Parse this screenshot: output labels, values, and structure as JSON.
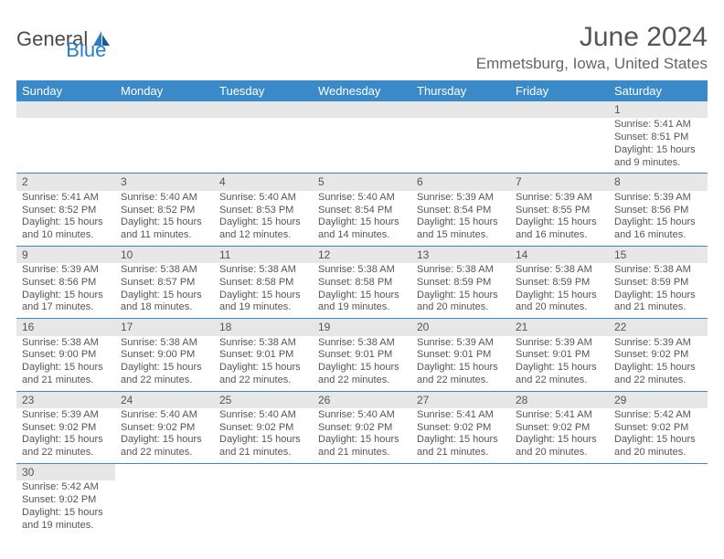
{
  "logo": {
    "text1": "General",
    "text2": "Blue"
  },
  "title": "June 2024",
  "location": "Emmetsburg, Iowa, United States",
  "header_bg": "#3a8ac9",
  "daynum_bg": "#e7e7e7",
  "divider_color": "#3a8ac9",
  "columns": [
    "Sunday",
    "Monday",
    "Tuesday",
    "Wednesday",
    "Thursday",
    "Friday",
    "Saturday"
  ],
  "weeks": [
    [
      null,
      null,
      null,
      null,
      null,
      null,
      {
        "n": "1",
        "sunrise": "5:41 AM",
        "sunset": "8:51 PM",
        "daylight": "15 hours and 9 minutes."
      }
    ],
    [
      {
        "n": "2",
        "sunrise": "5:41 AM",
        "sunset": "8:52 PM",
        "daylight": "15 hours and 10 minutes."
      },
      {
        "n": "3",
        "sunrise": "5:40 AM",
        "sunset": "8:52 PM",
        "daylight": "15 hours and 11 minutes."
      },
      {
        "n": "4",
        "sunrise": "5:40 AM",
        "sunset": "8:53 PM",
        "daylight": "15 hours and 12 minutes."
      },
      {
        "n": "5",
        "sunrise": "5:40 AM",
        "sunset": "8:54 PM",
        "daylight": "15 hours and 14 minutes."
      },
      {
        "n": "6",
        "sunrise": "5:39 AM",
        "sunset": "8:54 PM",
        "daylight": "15 hours and 15 minutes."
      },
      {
        "n": "7",
        "sunrise": "5:39 AM",
        "sunset": "8:55 PM",
        "daylight": "15 hours and 16 minutes."
      },
      {
        "n": "8",
        "sunrise": "5:39 AM",
        "sunset": "8:56 PM",
        "daylight": "15 hours and 16 minutes."
      }
    ],
    [
      {
        "n": "9",
        "sunrise": "5:39 AM",
        "sunset": "8:56 PM",
        "daylight": "15 hours and 17 minutes."
      },
      {
        "n": "10",
        "sunrise": "5:38 AM",
        "sunset": "8:57 PM",
        "daylight": "15 hours and 18 minutes."
      },
      {
        "n": "11",
        "sunrise": "5:38 AM",
        "sunset": "8:58 PM",
        "daylight": "15 hours and 19 minutes."
      },
      {
        "n": "12",
        "sunrise": "5:38 AM",
        "sunset": "8:58 PM",
        "daylight": "15 hours and 19 minutes."
      },
      {
        "n": "13",
        "sunrise": "5:38 AM",
        "sunset": "8:59 PM",
        "daylight": "15 hours and 20 minutes."
      },
      {
        "n": "14",
        "sunrise": "5:38 AM",
        "sunset": "8:59 PM",
        "daylight": "15 hours and 20 minutes."
      },
      {
        "n": "15",
        "sunrise": "5:38 AM",
        "sunset": "8:59 PM",
        "daylight": "15 hours and 21 minutes."
      }
    ],
    [
      {
        "n": "16",
        "sunrise": "5:38 AM",
        "sunset": "9:00 PM",
        "daylight": "15 hours and 21 minutes."
      },
      {
        "n": "17",
        "sunrise": "5:38 AM",
        "sunset": "9:00 PM",
        "daylight": "15 hours and 22 minutes."
      },
      {
        "n": "18",
        "sunrise": "5:38 AM",
        "sunset": "9:01 PM",
        "daylight": "15 hours and 22 minutes."
      },
      {
        "n": "19",
        "sunrise": "5:38 AM",
        "sunset": "9:01 PM",
        "daylight": "15 hours and 22 minutes."
      },
      {
        "n": "20",
        "sunrise": "5:39 AM",
        "sunset": "9:01 PM",
        "daylight": "15 hours and 22 minutes."
      },
      {
        "n": "21",
        "sunrise": "5:39 AM",
        "sunset": "9:01 PM",
        "daylight": "15 hours and 22 minutes."
      },
      {
        "n": "22",
        "sunrise": "5:39 AM",
        "sunset": "9:02 PM",
        "daylight": "15 hours and 22 minutes."
      }
    ],
    [
      {
        "n": "23",
        "sunrise": "5:39 AM",
        "sunset": "9:02 PM",
        "daylight": "15 hours and 22 minutes."
      },
      {
        "n": "24",
        "sunrise": "5:40 AM",
        "sunset": "9:02 PM",
        "daylight": "15 hours and 22 minutes."
      },
      {
        "n": "25",
        "sunrise": "5:40 AM",
        "sunset": "9:02 PM",
        "daylight": "15 hours and 21 minutes."
      },
      {
        "n": "26",
        "sunrise": "5:40 AM",
        "sunset": "9:02 PM",
        "daylight": "15 hours and 21 minutes."
      },
      {
        "n": "27",
        "sunrise": "5:41 AM",
        "sunset": "9:02 PM",
        "daylight": "15 hours and 21 minutes."
      },
      {
        "n": "28",
        "sunrise": "5:41 AM",
        "sunset": "9:02 PM",
        "daylight": "15 hours and 20 minutes."
      },
      {
        "n": "29",
        "sunrise": "5:42 AM",
        "sunset": "9:02 PM",
        "daylight": "15 hours and 20 minutes."
      }
    ],
    [
      {
        "n": "30",
        "sunrise": "5:42 AM",
        "sunset": "9:02 PM",
        "daylight": "15 hours and 19 minutes."
      },
      null,
      null,
      null,
      null,
      null,
      null
    ]
  ],
  "labels": {
    "sunrise": "Sunrise:",
    "sunset": "Sunset:",
    "daylight": "Daylight:"
  }
}
